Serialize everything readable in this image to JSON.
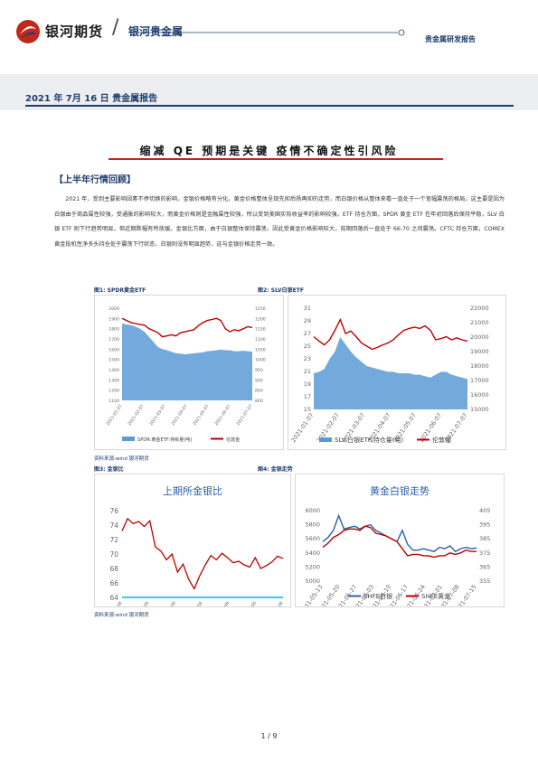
{
  "header": {
    "logo_text": "银河期货",
    "logo_sub": "银河贵金属",
    "right_label": "贵金属研发报告",
    "report_date": "2021 年 7月 16 日 贵金属报告"
  },
  "title": "缩减 QE 预期是关键 疫情不确定性引风险",
  "section_heading": "【上半年行情回顾】",
  "body_paragraph": "2021 年，受到主要影响因素不停切换的影响，金银价格略有分化。黄金价格整体呈现先抑后扬再抑的走势，而白银价格从整体来看一直处于一个宽幅震荡的格局。这主要是因为白银由于商品属性较强，受通胀的影响较大，而黄金价格则是金融属性较强，所以受到美国实际收益率的影响较强。ETF 持仓方面，SPDR 黄金 ETF 在年初回落后保持平稳，SLV 白银 ETF 则下行趋势明显，但近期跌幅有所放缓。金银比方面，由于白银整体保持震荡，因此受黄金价格影响较大，前期回落后一直处于 66-70 之间震荡。CFTC 持仓方面，COMEX 黄金投机性净多头持仓处于震荡下行状态，白银则没有明显趋势，这与金银价格走势一致。",
  "figures": {
    "fig1_label": "图1: SPDR黄金ETF",
    "fig2_label": "图2: SLV白银ETF",
    "fig3_label": "图3: 金银比",
    "fig4_label": "图4: 金银走势",
    "source_1": "资料来源:wind 银河期货",
    "source_2": "资料来源:wind 银河期货"
  },
  "page_number": "1 / 9",
  "colors": {
    "brand_blue": "#1f3d6e",
    "accent_red": "#c0281c",
    "series_blue": "#5b9bd5",
    "series_red": "#c00000",
    "line_blue": "#2e5fa8",
    "ratio_ref": "#00b0f0"
  },
  "chart_data": [
    {
      "type": "area",
      "title": "",
      "x_ticks": [
        "2021-01-07",
        "2021-02-07",
        "2021-03-07",
        "2021-04-07",
        "2021-05-07",
        "2021-06-07",
        "2021-07-07"
      ],
      "y_left_ticks": [
        1100,
        1200,
        1300,
        1400,
        1500,
        1600,
        1700,
        1800,
        1900,
        2000
      ],
      "y_right_ticks": [
        800,
        850,
        900,
        950,
        1000,
        1050,
        1100,
        1150,
        1200,
        1250
      ],
      "ylim_left": [
        1100,
        2000
      ],
      "ylim_right": [
        800,
        1250
      ],
      "series": [
        {
          "name": "SPDR:黄金ETF:持有量(吨)",
          "axis": "right",
          "kind": "area",
          "values": [
            1175,
            1170,
            1168,
            1160,
            1150,
            1135,
            1110,
            1085,
            1060,
            1050,
            1045,
            1038,
            1030,
            1028,
            1025,
            1027,
            1030,
            1032,
            1035,
            1040,
            1042,
            1045,
            1048,
            1045,
            1045,
            1040,
            1040,
            1042,
            1040,
            1038
          ]
        },
        {
          "name": "伦敦金",
          "axis": "left",
          "kind": "line",
          "values": [
            1900,
            1880,
            1860,
            1850,
            1840,
            1835,
            1800,
            1780,
            1760,
            1720,
            1730,
            1740,
            1730,
            1760,
            1770,
            1780,
            1790,
            1830,
            1860,
            1880,
            1890,
            1900,
            1880,
            1800,
            1770,
            1790,
            1780,
            1800,
            1820,
            1810
          ]
        }
      ],
      "legend": "bottom"
    },
    {
      "type": "area",
      "title": "",
      "x_ticks": [
        "2021-01-07",
        "2021-02-07",
        "2021-03-07",
        "2021-04-07",
        "2021-05-07",
        "2021-06-07",
        "2021-07-07"
      ],
      "y_left_ticks": [
        15,
        17,
        19,
        21,
        23,
        25,
        27,
        29,
        31
      ],
      "y_right_ticks": [
        15000,
        16000,
        17000,
        18000,
        19000,
        20000,
        21000,
        22000
      ],
      "ylim_left": [
        15,
        31
      ],
      "ylim_right": [
        15000,
        22000
      ],
      "series": [
        {
          "name": "SLV:白银ETF:持仓量(吨)",
          "axis": "right",
          "kind": "area",
          "values": [
            17500,
            17600,
            17800,
            18500,
            19000,
            20000,
            19500,
            19000,
            18600,
            18300,
            18000,
            17900,
            17800,
            17700,
            17600,
            17600,
            17500,
            17500,
            17500,
            17400,
            17400,
            17300,
            17200,
            17400,
            17600,
            17600,
            17400,
            17300,
            17200,
            17100
          ]
        },
        {
          "name": "伦敦银",
          "axis": "left",
          "kind": "line",
          "values": [
            26.5,
            25.8,
            25.2,
            26.0,
            27.5,
            29.2,
            27.0,
            27.4,
            26.5,
            25.5,
            25.0,
            24.5,
            24.8,
            25.2,
            25.5,
            26.0,
            26.8,
            27.5,
            27.8,
            28.0,
            27.8,
            28.2,
            27.5,
            26.0,
            26.2,
            26.5,
            26.0,
            26.3,
            26.0,
            25.8
          ]
        }
      ],
      "legend": "bottom"
    },
    {
      "type": "line",
      "title": "上期所金银比",
      "x_ticks": [
        "2021-01-08",
        "2021-02-08",
        "2021-03-08",
        "2021-04-08",
        "2021-05-08",
        "2021-06-08",
        "2021-07-08"
      ],
      "y_ticks": [
        64,
        66,
        68,
        70,
        72,
        74,
        76
      ],
      "ylim": [
        64,
        76
      ],
      "series": [
        {
          "name": "",
          "values": [
            73.2,
            74.9,
            74.2,
            74.5,
            73.8,
            74.6,
            71.0,
            70.4,
            69.2,
            70.0,
            67.5,
            68.6,
            66.5,
            65.2,
            67.0,
            68.5,
            69.8,
            69.2,
            70.1,
            69.5,
            68.8,
            69.0,
            68.5,
            68.2,
            69.5,
            68.0,
            68.4,
            68.9,
            69.7,
            69.4
          ]
        },
        {
          "name": "",
          "values": [
            64,
            64,
            64,
            64,
            64,
            64,
            64,
            64,
            64,
            64,
            64,
            64,
            64,
            64,
            64,
            64,
            64,
            64,
            64,
            64,
            64,
            64,
            64,
            64,
            64,
            64,
            64,
            64,
            64,
            64
          ]
        }
      ],
      "legend": "none"
    },
    {
      "type": "line",
      "title": "黄金白银走势",
      "x_ticks": [
        "2021-05-13",
        "2021-05-20",
        "2021-05-27",
        "2021-06-03",
        "2021-06-10",
        "2021-06-17",
        "2021-06-24",
        "2021-07-01",
        "2021-07-08",
        "2021-07-15"
      ],
      "y_left_ticks": [
        5000,
        5200,
        5400,
        5600,
        5800,
        6000
      ],
      "y_right_ticks": [
        355,
        365,
        375,
        385,
        395,
        405
      ],
      "ylim_left": [
        5000,
        6000
      ],
      "ylim_right": [
        355,
        405
      ],
      "series": [
        {
          "name": "SHFE白银",
          "axis": "left",
          "values": [
            5560,
            5620,
            5720,
            5930,
            5740,
            5760,
            5780,
            5740,
            5780,
            5800,
            5720,
            5680,
            5640,
            5600,
            5560,
            5720,
            5520,
            5440,
            5440,
            5460,
            5440,
            5420,
            5480,
            5460,
            5500,
            5420,
            5460,
            5480,
            5460,
            5470
          ]
        },
        {
          "name": "SHFE黄金",
          "axis": "right",
          "values": [
            379,
            382,
            386,
            388,
            391,
            392,
            392,
            391,
            394,
            393,
            389,
            388,
            387,
            385,
            383,
            378,
            373,
            374,
            374,
            373,
            373,
            372,
            373,
            373,
            375,
            374,
            375,
            377,
            376,
            376
          ]
        }
      ],
      "legend": "bottom"
    }
  ]
}
